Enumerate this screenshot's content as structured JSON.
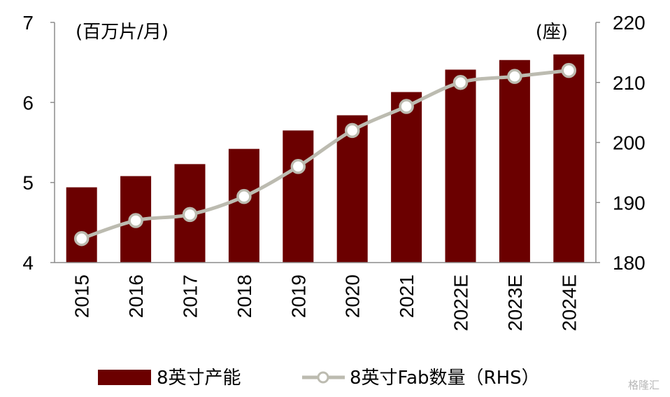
{
  "chart_data": {
    "type": "bar",
    "categories": [
      "2015",
      "2016",
      "2017",
      "2018",
      "2019",
      "2020",
      "2021",
      "2022E",
      "2023E",
      "2024E"
    ],
    "series": [
      {
        "name": "8英寸产能",
        "type": "bar",
        "axis": "left",
        "color": "#6b0000",
        "values": [
          4.94,
          5.08,
          5.23,
          5.42,
          5.65,
          5.84,
          6.13,
          6.41,
          6.53,
          6.6
        ]
      },
      {
        "name": "8英寸Fab数量（RHS）",
        "type": "line",
        "axis": "right",
        "color": "#bcbbb0",
        "values": [
          184,
          187,
          188,
          191,
          196,
          202,
          206,
          210,
          211,
          212
        ]
      }
    ],
    "left_axis": {
      "unit": "(百万片/月)",
      "ylim": [
        4,
        7
      ],
      "ticks": [
        "4",
        "5",
        "6",
        "7"
      ]
    },
    "right_axis": {
      "unit": "(座)",
      "ylim": [
        180,
        220
      ],
      "ticks": [
        "180",
        "190",
        "200",
        "210",
        "220"
      ]
    },
    "grid": false,
    "legend": "bottom"
  },
  "watermark": "格隆汇"
}
